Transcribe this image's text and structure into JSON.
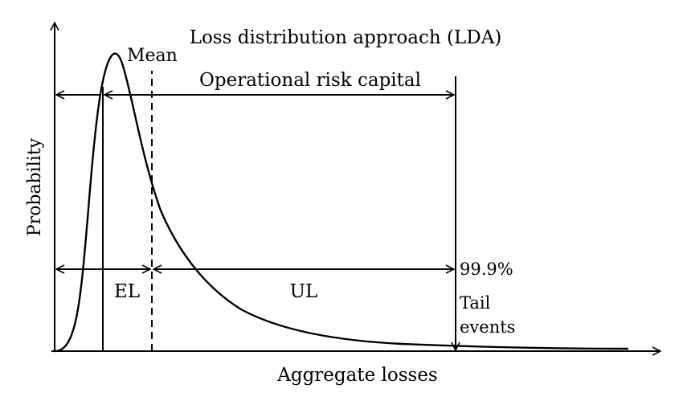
{
  "title": "Loss distribution approach (LDA)",
  "xlabel": "Aggregate losses",
  "ylabel": "Probability",
  "labels": {
    "mean": "Mean",
    "op_risk_capital": "Operational risk capital",
    "el": "EL",
    "ul": "UL",
    "percentile": "99.9%",
    "tail_line1": "Tail",
    "tail_line2": "events"
  }
}
